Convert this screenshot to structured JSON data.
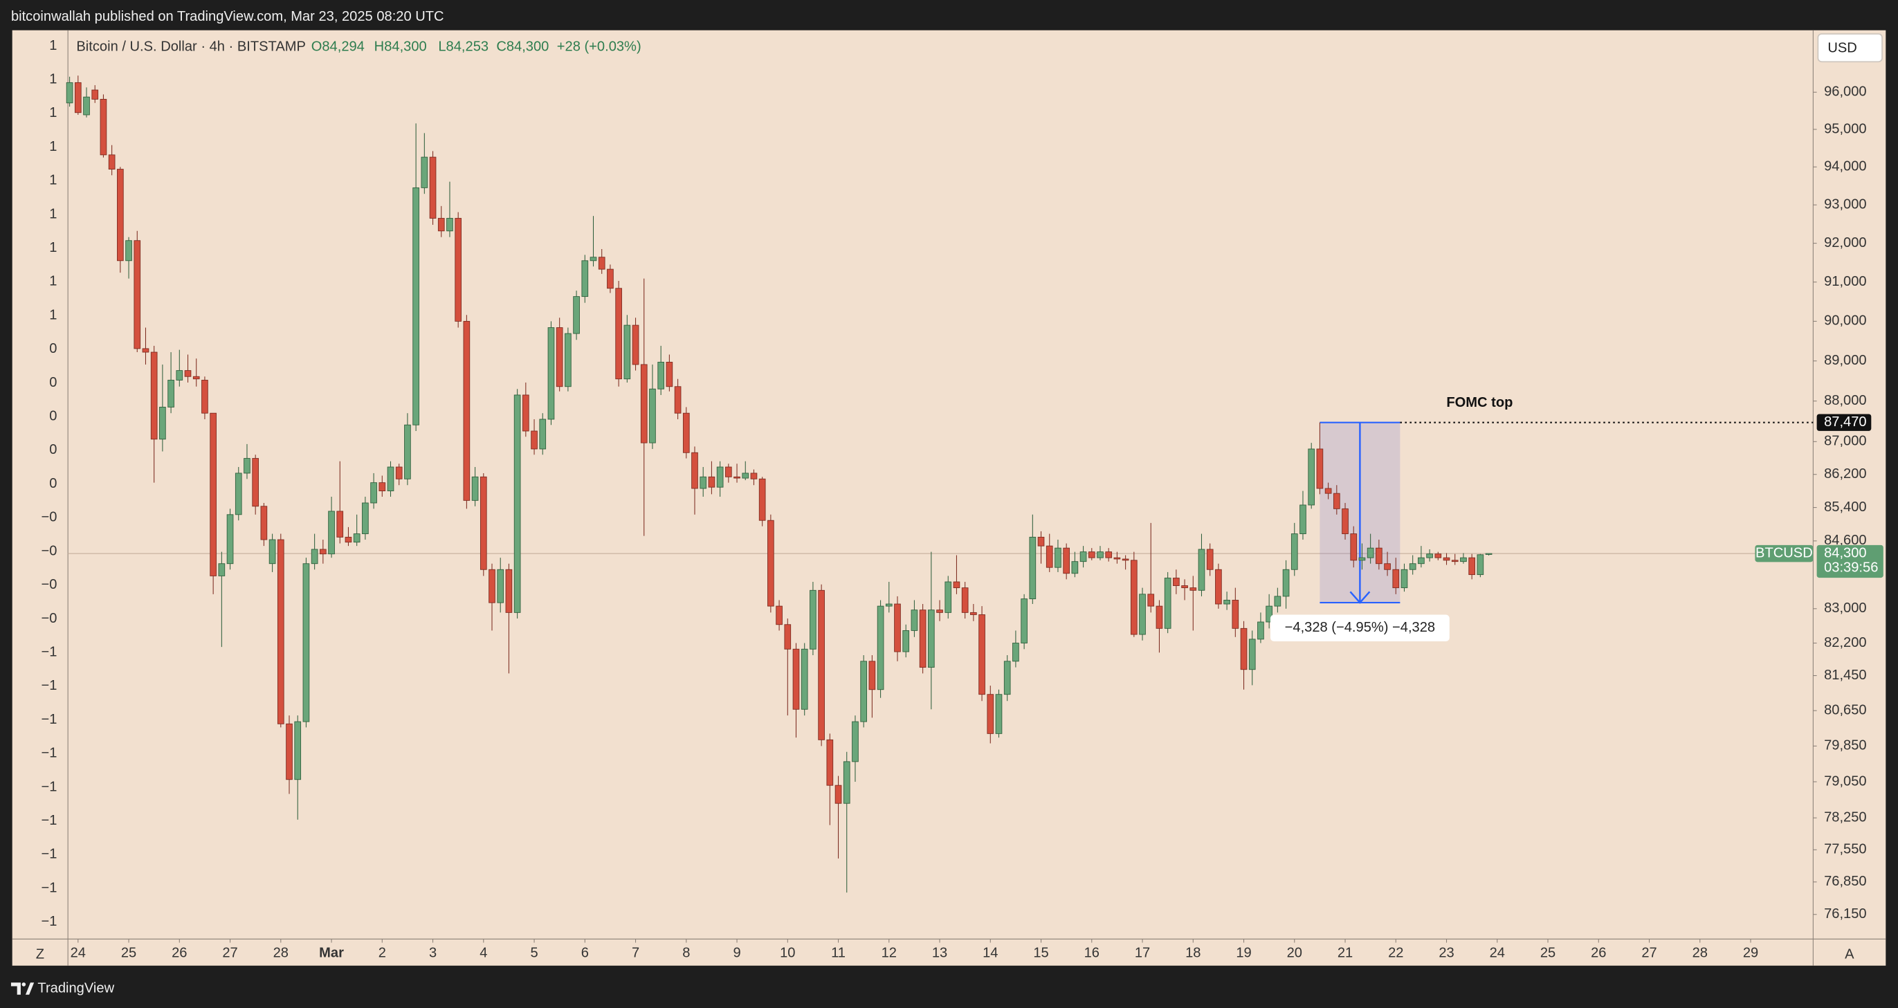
{
  "header": {
    "published": "bitcoinwallah published on TradingView.com, Mar 23, 2025 08:20 UTC"
  },
  "footer": {
    "brand": "TradingView"
  },
  "chart_data": {
    "type": "candlestick",
    "title": "Bitcoin / U.S. Dollar · 4h · BITSTAMP",
    "header_values": [
      "O84,294",
      "H84,300",
      "L84,253",
      "C84,300",
      "+28 (+0.03%)"
    ],
    "currency": "USD",
    "scale_buttons": [
      "Z",
      "A"
    ],
    "log_scale": true,
    "up_color": "#6aa67a",
    "down_color": "#d4503e",
    "ylim": [
      75650,
      97690
    ],
    "xlim": [
      -0.2,
      206.4
    ],
    "yticks": [
      {
        "value": 96000,
        "label": "96,000"
      },
      {
        "value": 95000,
        "label": "95,000"
      },
      {
        "value": 94000,
        "label": "94,000"
      },
      {
        "value": 93000,
        "label": "93,000"
      },
      {
        "value": 92000,
        "label": "92,000"
      },
      {
        "value": 91000,
        "label": "91,000"
      },
      {
        "value": 90000,
        "label": "90,000"
      },
      {
        "value": 89000,
        "label": "89,000"
      },
      {
        "value": 88000,
        "label": "88,000"
      },
      {
        "value": 87000,
        "label": "87,000"
      },
      {
        "value": 86200,
        "label": "86,200"
      },
      {
        "value": 85400,
        "label": "85,400"
      },
      {
        "value": 84600,
        "label": "84,600"
      },
      {
        "value": 83000,
        "label": "83,000"
      },
      {
        "value": 82200,
        "label": "82,200"
      },
      {
        "value": 81450,
        "label": "81,450"
      },
      {
        "value": 80650,
        "label": "80,650"
      },
      {
        "value": 79850,
        "label": "79,850"
      },
      {
        "value": 79050,
        "label": "79,050"
      },
      {
        "value": 78250,
        "label": "78,250"
      },
      {
        "value": 77550,
        "label": "77,550"
      },
      {
        "value": 76850,
        "label": "76,850"
      },
      {
        "value": 76150,
        "label": "76,150"
      }
    ],
    "xticks": [
      {
        "value": 1,
        "label": "24"
      },
      {
        "value": 7,
        "label": "25"
      },
      {
        "value": 13,
        "label": "26"
      },
      {
        "value": 19,
        "label": "27"
      },
      {
        "value": 25,
        "label": "28"
      },
      {
        "value": 31,
        "label": "Mar"
      },
      {
        "value": 37,
        "label": "2"
      },
      {
        "value": 43,
        "label": "3"
      },
      {
        "value": 49,
        "label": "4"
      },
      {
        "value": 55,
        "label": "5"
      },
      {
        "value": 61,
        "label": "6"
      },
      {
        "value": 67,
        "label": "7"
      },
      {
        "value": 73,
        "label": "8"
      },
      {
        "value": 79,
        "label": "9"
      },
      {
        "value": 85,
        "label": "10"
      },
      {
        "value": 91,
        "label": "11"
      },
      {
        "value": 97,
        "label": "12"
      },
      {
        "value": 103,
        "label": "13"
      },
      {
        "value": 109,
        "label": "14"
      },
      {
        "value": 115,
        "label": "15"
      },
      {
        "value": 121,
        "label": "16"
      },
      {
        "value": 127,
        "label": "17"
      },
      {
        "value": 133,
        "label": "18"
      },
      {
        "value": 139,
        "label": "19"
      },
      {
        "value": 145,
        "label": "20"
      },
      {
        "value": 151,
        "label": "21"
      },
      {
        "value": 157,
        "label": "22"
      },
      {
        "value": 163,
        "label": "23"
      },
      {
        "value": 169,
        "label": "24"
      },
      {
        "value": 175,
        "label": "25"
      },
      {
        "value": 181,
        "label": "26"
      },
      {
        "value": 187,
        "label": "27"
      },
      {
        "value": 193,
        "label": "28"
      },
      {
        "value": 199,
        "label": "29"
      }
    ],
    "left_axis_labels": [
      "1",
      "1",
      "1",
      "1",
      "1",
      "1",
      "1",
      "1",
      "1",
      "0",
      "0",
      "0",
      "0",
      "0",
      "−0",
      "−0",
      "−0",
      "−0",
      "−1",
      "−1",
      "−1",
      "−1",
      "−1",
      "−1",
      "−1",
      "−1",
      "−1"
    ],
    "last_price": {
      "symbol": "BTCUSD",
      "value": 84300,
      "label": "84,300",
      "countdown": "03:39:56",
      "color": "#5f9e72"
    },
    "annotations": [
      {
        "type": "hline",
        "label": "FOMC top",
        "value": 87470,
        "value_label": "87,470"
      },
      {
        "type": "range",
        "label": "−4,328 (−4.95%) −4,328",
        "from": 87470,
        "to": 83142,
        "x": [
          148,
          157.5
        ],
        "color": "#2962ff"
      }
    ],
    "ohlc": [
      [
        95710,
        96420,
        95610,
        96260
      ],
      [
        96260,
        96450,
        95390,
        95450
      ],
      [
        95390,
        96130,
        95320,
        95870
      ],
      [
        96060,
        96190,
        95710,
        95810
      ],
      [
        95810,
        95940,
        94250,
        94320
      ],
      [
        94320,
        94580,
        93780,
        93940
      ],
      [
        93940,
        94000,
        91240,
        91550
      ],
      [
        91550,
        92160,
        91090,
        92070
      ],
      [
        92070,
        92320,
        89220,
        89310
      ],
      [
        89310,
        89840,
        88910,
        89220
      ],
      [
        89220,
        89380,
        86000,
        87060
      ],
      [
        87060,
        88910,
        86760,
        87850
      ],
      [
        87850,
        89220,
        87700,
        88520
      ],
      [
        88520,
        89280,
        88360,
        88760
      ],
      [
        88760,
        89160,
        88460,
        88610
      ],
      [
        88610,
        89060,
        88360,
        88550
      ],
      [
        88520,
        88610,
        87550,
        87700
      ],
      [
        87700,
        87700,
        83340,
        83770
      ],
      [
        83770,
        84340,
        82110,
        84060
      ],
      [
        84060,
        85370,
        83920,
        85230
      ],
      [
        85230,
        86380,
        85090,
        86230
      ],
      [
        86230,
        86940,
        86090,
        86590
      ],
      [
        86590,
        86680,
        85230,
        85430
      ],
      [
        85430,
        85510,
        84480,
        84630
      ],
      [
        84060,
        84770,
        83860,
        84630
      ],
      [
        84630,
        84770,
        80270,
        80350
      ],
      [
        80350,
        80540,
        78780,
        79100
      ],
      [
        79100,
        80540,
        78210,
        80400
      ],
      [
        80400,
        84200,
        80270,
        84060
      ],
      [
        84060,
        84770,
        83920,
        84400
      ],
      [
        84400,
        84630,
        84060,
        84290
      ],
      [
        84290,
        85660,
        84200,
        85310
      ],
      [
        85310,
        86520,
        84540,
        84690
      ],
      [
        84690,
        84930,
        84480,
        84570
      ],
      [
        84570,
        85230,
        84480,
        84770
      ],
      [
        84770,
        85660,
        84630,
        85510
      ],
      [
        85510,
        86230,
        85370,
        86000
      ],
      [
        86000,
        86170,
        85660,
        85800
      ],
      [
        85800,
        86520,
        85660,
        86380
      ],
      [
        86380,
        86460,
        85940,
        86090
      ],
      [
        86090,
        87700,
        85940,
        87410
      ],
      [
        87410,
        95160,
        87260,
        93450
      ],
      [
        93450,
        94900,
        93290,
        94260
      ],
      [
        94260,
        94420,
        92480,
        92650
      ],
      [
        92650,
        92970,
        92160,
        92320
      ],
      [
        92320,
        93610,
        92160,
        92650
      ],
      [
        92650,
        92810,
        89840,
        90000
      ],
      [
        90000,
        90160,
        85370,
        85570
      ],
      [
        85570,
        86380,
        85430,
        86140
      ],
      [
        86140,
        86230,
        83770,
        83920
      ],
      [
        83920,
        84060,
        82490,
        83140
      ],
      [
        83140,
        84200,
        82910,
        83920
      ],
      [
        83920,
        84060,
        81500,
        82910
      ],
      [
        82910,
        88300,
        82770,
        88150
      ],
      [
        88150,
        88460,
        87120,
        87260
      ],
      [
        87260,
        87550,
        86680,
        86820
      ],
      [
        86820,
        87700,
        86680,
        87550
      ],
      [
        87550,
        90000,
        87410,
        89840
      ],
      [
        89840,
        90090,
        88240,
        88360
      ],
      [
        88360,
        89840,
        88240,
        89690
      ],
      [
        89690,
        90780,
        89530,
        90630
      ],
      [
        90630,
        91700,
        90470,
        91550
      ],
      [
        91550,
        92710,
        91400,
        91640
      ],
      [
        91640,
        91850,
        91210,
        91330
      ],
      [
        91330,
        91450,
        90720,
        90840
      ],
      [
        90840,
        91030,
        88360,
        88550
      ],
      [
        88550,
        90160,
        88460,
        89900
      ],
      [
        89900,
        90090,
        88760,
        88910
      ],
      [
        88910,
        91090,
        84720,
        86970
      ],
      [
        86970,
        88910,
        86820,
        88300
      ],
      [
        88300,
        89380,
        88150,
        88970
      ],
      [
        88970,
        89160,
        88240,
        88360
      ],
      [
        88360,
        88550,
        87550,
        87700
      ],
      [
        87700,
        87850,
        86590,
        86730
      ],
      [
        86730,
        86880,
        85230,
        85860
      ],
      [
        85860,
        86380,
        85660,
        86140
      ],
      [
        86140,
        86520,
        85720,
        85890
      ],
      [
        85890,
        86520,
        85660,
        86380
      ],
      [
        86380,
        86460,
        86000,
        86140
      ],
      [
        86140,
        86460,
        86000,
        86110
      ],
      [
        86110,
        86520,
        86060,
        86230
      ],
      [
        86230,
        86320,
        85940,
        86090
      ],
      [
        86090,
        86140,
        84950,
        85090
      ],
      [
        85090,
        85230,
        82910,
        83060
      ],
      [
        83060,
        83200,
        82490,
        82630
      ],
      [
        82630,
        82770,
        80540,
        82060
      ],
      [
        82060,
        82200,
        80040,
        80680
      ],
      [
        80680,
        82200,
        80540,
        82060
      ],
      [
        82060,
        83630,
        81920,
        83430
      ],
      [
        83430,
        83570,
        79850,
        79990
      ],
      [
        79990,
        80130,
        78090,
        78970
      ],
      [
        78970,
        79180,
        77360,
        78570
      ],
      [
        78570,
        79720,
        76620,
        79500
      ],
      [
        79500,
        80540,
        79050,
        80400
      ],
      [
        80400,
        81920,
        80270,
        81780
      ],
      [
        81780,
        81920,
        80490,
        81130
      ],
      [
        81130,
        83200,
        80940,
        83060
      ],
      [
        83060,
        83630,
        82910,
        83110
      ],
      [
        83110,
        83290,
        81780,
        82000
      ],
      [
        82000,
        82630,
        81870,
        82490
      ],
      [
        82490,
        83200,
        82340,
        82970
      ],
      [
        82970,
        83110,
        81500,
        81640
      ],
      [
        81640,
        84340,
        80680,
        82970
      ],
      [
        82970,
        83200,
        82710,
        82910
      ],
      [
        82910,
        83770,
        82770,
        83630
      ],
      [
        83630,
        84260,
        83340,
        83490
      ],
      [
        83490,
        83630,
        82770,
        82910
      ],
      [
        82910,
        83110,
        82710,
        82860
      ],
      [
        82860,
        83060,
        80870,
        81020
      ],
      [
        81020,
        81220,
        79910,
        80130
      ],
      [
        80130,
        81130,
        80040,
        81020
      ],
      [
        81020,
        81920,
        80870,
        81780
      ],
      [
        81780,
        82490,
        81640,
        82200
      ],
      [
        82200,
        83340,
        82060,
        83230
      ],
      [
        83230,
        85230,
        83110,
        84690
      ],
      [
        84690,
        84830,
        84060,
        84480
      ],
      [
        84480,
        84770,
        83860,
        83970
      ],
      [
        83970,
        84630,
        83860,
        84430
      ],
      [
        84430,
        84540,
        83690,
        83830
      ],
      [
        83830,
        84340,
        83740,
        84110
      ],
      [
        84110,
        84480,
        83970,
        84340
      ],
      [
        84340,
        84430,
        84140,
        84200
      ],
      [
        84200,
        84480,
        84140,
        84340
      ],
      [
        84340,
        84430,
        84110,
        84200
      ],
      [
        84200,
        84340,
        84060,
        84170
      ],
      [
        84170,
        84260,
        83920,
        84140
      ],
      [
        84140,
        84340,
        82340,
        82400
      ],
      [
        82400,
        83490,
        82260,
        83340
      ],
      [
        83340,
        85030,
        82910,
        83060
      ],
      [
        83060,
        83200,
        81980,
        82540
      ],
      [
        82540,
        83860,
        82430,
        83720
      ],
      [
        83720,
        83920,
        83340,
        83540
      ],
      [
        83540,
        83690,
        83200,
        83490
      ],
      [
        83490,
        83770,
        82490,
        83430
      ],
      [
        83430,
        84770,
        83290,
        84400
      ],
      [
        84400,
        84540,
        83770,
        83920
      ],
      [
        83920,
        84060,
        83000,
        83110
      ],
      [
        83110,
        83400,
        82970,
        83200
      ],
      [
        83200,
        83490,
        82340,
        82540
      ],
      [
        82540,
        82710,
        81130,
        81590
      ],
      [
        81590,
        82490,
        81230,
        82290
      ],
      [
        82290,
        82910,
        82200,
        82690
      ],
      [
        82690,
        83340,
        82540,
        83060
      ],
      [
        83060,
        83490,
        82910,
        83290
      ],
      [
        83290,
        84140,
        83000,
        83920
      ],
      [
        83920,
        85030,
        83770,
        84770
      ],
      [
        84770,
        85800,
        84630,
        85460
      ],
      [
        85460,
        86970,
        85370,
        86820
      ],
      [
        86820,
        87470,
        85720,
        85860
      ],
      [
        85860,
        86000,
        85600,
        85740
      ],
      [
        85740,
        85940,
        85230,
        85370
      ],
      [
        85370,
        85510,
        84630,
        84770
      ],
      [
        84770,
        84950,
        83970,
        84140
      ],
      [
        84140,
        84540,
        83920,
        84200
      ],
      [
        84200,
        84770,
        84060,
        84430
      ],
      [
        84430,
        84630,
        83920,
        84060
      ],
      [
        84060,
        84340,
        83770,
        83920
      ],
      [
        83920,
        84200,
        83340,
        83490
      ],
      [
        83490,
        84060,
        83400,
        83920
      ],
      [
        83920,
        84260,
        83800,
        84060
      ],
      [
        84060,
        84480,
        83970,
        84200
      ],
      [
        84200,
        84400,
        84110,
        84290
      ],
      [
        84290,
        84340,
        84140,
        84200
      ],
      [
        84200,
        84310,
        84030,
        84140
      ],
      [
        84140,
        84290,
        84030,
        84110
      ],
      [
        84110,
        84310,
        84060,
        84200
      ],
      [
        84200,
        84290,
        83690,
        83800
      ],
      [
        83800,
        84290,
        83740,
        84272
      ],
      [
        84294,
        84300,
        84253,
        84300
      ]
    ]
  }
}
